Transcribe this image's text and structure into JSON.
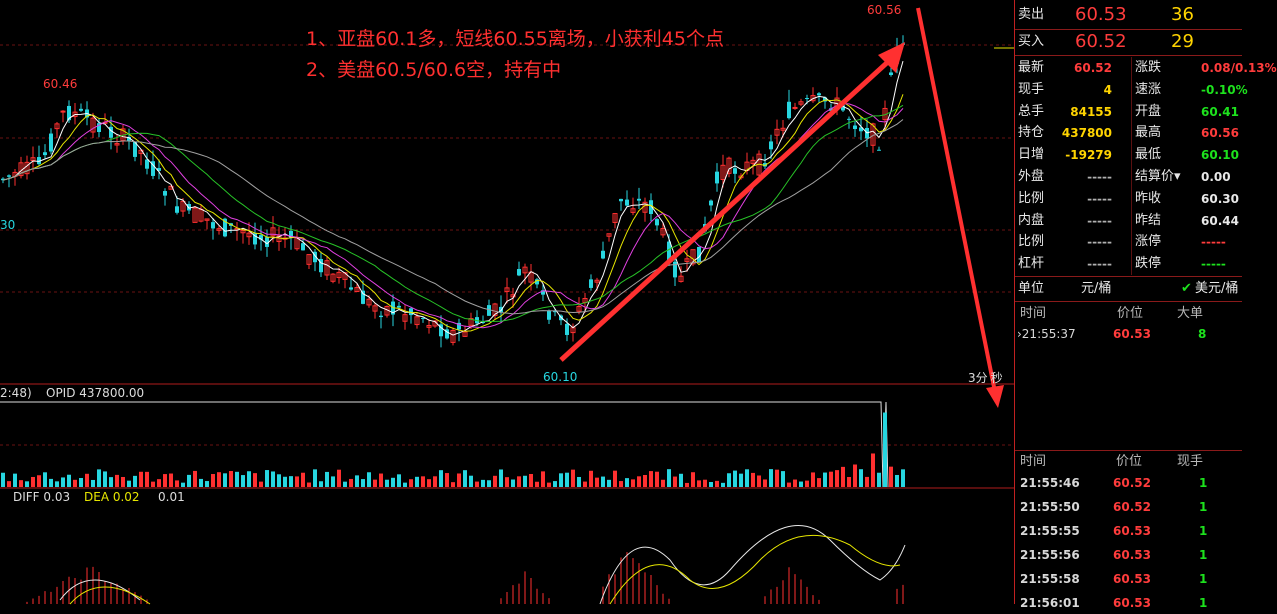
{
  "annotations": [
    "1、亚盘60.1多，短线60.55离场，小获利45个点",
    "2、美盘60.5/60.6空，持有中"
  ],
  "main_chart": {
    "high_label_left": "60.46",
    "high_label_right": "60.56",
    "low_label": "60.10",
    "left_edge_label": "30",
    "period_label": "3分",
    "period_suffix": "秒",
    "colors": {
      "up": "#ff3030",
      "down": "#27d6e0",
      "ma5": "#ffffff",
      "ma10": "#e6e600",
      "ma20": "#e040e0",
      "ma40": "#27c227",
      "ma60": "#a0a0a0",
      "arrow": "#ff3030"
    }
  },
  "volume_panel": {
    "label_left": "2:48)",
    "opid_label": "OPID 437800.00"
  },
  "macd_panel": {
    "diff_label": "DIFF 0.03",
    "dea_label": "DEA 0.02",
    "macd_label": "0.01"
  },
  "quote": {
    "ask": {
      "label": "卖出",
      "price": "60.53",
      "vol": "36"
    },
    "bid": {
      "label": "买入",
      "price": "60.52",
      "vol": "29"
    },
    "stats": [
      {
        "l": "最新",
        "v": "60.52",
        "vc": "red",
        "l2": "涨跌",
        "v2": "0.08/0.13%",
        "v2c": "red"
      },
      {
        "l": "现手",
        "v": "4",
        "vc": "yel",
        "l2": "速涨",
        "v2": "-0.10%",
        "v2c": "grn"
      },
      {
        "l": "总手",
        "v": "84155",
        "vc": "yel",
        "l2": "开盘",
        "v2": "60.41",
        "v2c": "grn"
      },
      {
        "l": "持仓",
        "v": "437800",
        "vc": "yel",
        "l2": "最高",
        "v2": "60.56",
        "v2c": "red"
      },
      {
        "l": "日增",
        "v": "-19279",
        "vc": "yel",
        "l2": "最低",
        "v2": "60.10",
        "v2c": "grn"
      },
      {
        "l": "外盘",
        "v": "-----",
        "vc": "gry",
        "l2": "结算价▾",
        "v2": "0.00",
        "v2c": "wht"
      },
      {
        "l": "比例",
        "v": "-----",
        "vc": "gry",
        "l2": "昨收",
        "v2": "60.30",
        "v2c": "wht"
      },
      {
        "l": "内盘",
        "v": "-----",
        "vc": "gry",
        "l2": "昨结",
        "v2": "60.44",
        "v2c": "wht"
      },
      {
        "l": "比例",
        "v": "-----",
        "vc": "gry",
        "l2": "涨停",
        "v2": "-----",
        "v2c": "red"
      },
      {
        "l": "杠杆",
        "v": "-----",
        "vc": "gry",
        "l2": "跌停",
        "v2": "-----",
        "v2c": "grn"
      }
    ],
    "unit": {
      "label": "单位",
      "value": "元/桶",
      "check": "✔",
      "alt": "美元/桶"
    }
  },
  "big_orders": {
    "headers": [
      "时间",
      "价位",
      "大单"
    ],
    "rows": [
      {
        "time": "›21:55:37",
        "price": "60.53",
        "qty": "8"
      }
    ]
  },
  "ticks": {
    "headers": [
      "时间",
      "价位",
      "现手"
    ],
    "rows": [
      {
        "time": "21:55:46",
        "price": "60.52",
        "qty": "1"
      },
      {
        "time": "21:55:50",
        "price": "60.52",
        "qty": "1"
      },
      {
        "time": "21:55:55",
        "price": "60.53",
        "qty": "1"
      },
      {
        "time": "21:55:56",
        "price": "60.53",
        "qty": "1"
      },
      {
        "time": "21:55:58",
        "price": "60.53",
        "qty": "1"
      },
      {
        "time": "21:56:01",
        "price": "60.53",
        "qty": "1"
      }
    ]
  }
}
